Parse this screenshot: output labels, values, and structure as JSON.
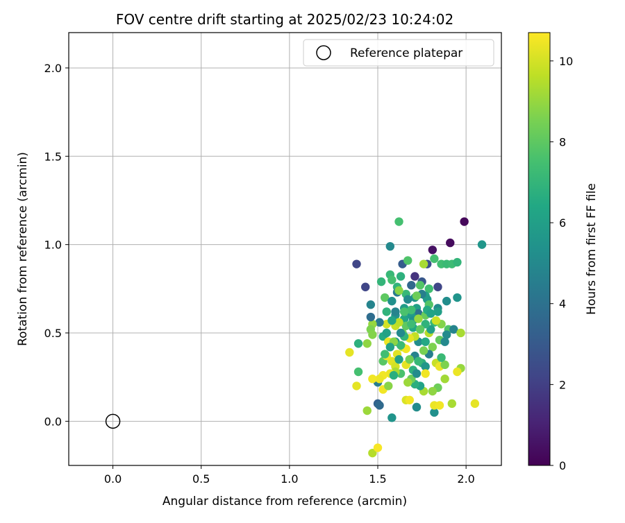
{
  "chart_data": {
    "type": "scatter",
    "title": "FOV centre drift starting at 2025/02/23 10:24:02",
    "xlabel": "Angular distance from reference (arcmin)",
    "ylabel": "Rotation from reference (arcmin)",
    "xlim": [
      -0.25,
      2.2
    ],
    "ylim": [
      -0.25,
      2.2
    ],
    "xticks": [
      "0.0",
      "0.5",
      "1.0",
      "1.5",
      "2.0"
    ],
    "yticks": [
      "0.0",
      "0.5",
      "1.0",
      "1.5",
      "2.0"
    ],
    "grid": true,
    "legend": {
      "placement": "upper-right",
      "label": "Reference platepar"
    },
    "reference": {
      "x": 0.0,
      "y": 0.0
    },
    "colorbar": {
      "label": "Hours from first FF file",
      "min": 0,
      "max": 10.7,
      "ticks": [
        "0",
        "2",
        "4",
        "6",
        "8",
        "10"
      ],
      "colormap": "viridis"
    },
    "points": [
      [
        1.99,
        1.13,
        0.2
      ],
      [
        1.91,
        1.01,
        0.3
      ],
      [
        1.81,
        0.97,
        0.5
      ],
      [
        1.62,
        1.13,
        7.5
      ],
      [
        2.09,
        1.0,
        5.6
      ],
      [
        1.38,
        0.89,
        2.2
      ],
      [
        1.57,
        0.99,
        5.0
      ],
      [
        1.43,
        0.76,
        2.2
      ],
      [
        1.64,
        0.89,
        3.1
      ],
      [
        1.71,
        0.82,
        1.6
      ],
      [
        1.69,
        0.77,
        3.6
      ],
      [
        1.75,
        0.79,
        2.9
      ],
      [
        1.84,
        0.76,
        2.2
      ],
      [
        1.82,
        0.92,
        7.5
      ],
      [
        1.86,
        0.89,
        7.4
      ],
      [
        1.89,
        0.89,
        7.2
      ],
      [
        1.92,
        0.89,
        7.3
      ],
      [
        1.95,
        0.9,
        7.0
      ],
      [
        1.78,
        0.89,
        2.6
      ],
      [
        1.76,
        0.89,
        9.3
      ],
      [
        1.67,
        0.91,
        7.7
      ],
      [
        1.63,
        0.82,
        6.8
      ],
      [
        1.57,
        0.83,
        7.1
      ],
      [
        1.52,
        0.79,
        7.0
      ],
      [
        1.58,
        0.8,
        7.5
      ],
      [
        1.61,
        0.76,
        6.9
      ],
      [
        1.66,
        0.72,
        7.1
      ],
      [
        1.74,
        0.77,
        7.8
      ],
      [
        1.79,
        0.75,
        7.4
      ],
      [
        1.77,
        0.71,
        6.2
      ],
      [
        1.71,
        0.7,
        5.6
      ],
      [
        1.61,
        0.73,
        4.4
      ],
      [
        1.62,
        0.74,
        8.8
      ],
      [
        1.54,
        0.7,
        8.0
      ],
      [
        1.58,
        0.68,
        5.3
      ],
      [
        1.46,
        0.66,
        4.8
      ],
      [
        1.65,
        0.64,
        5.9
      ],
      [
        1.72,
        0.64,
        6.0
      ],
      [
        1.78,
        0.69,
        5.8
      ],
      [
        1.73,
        0.61,
        4.0
      ],
      [
        1.79,
        0.66,
        7.8
      ],
      [
        1.84,
        0.64,
        5.1
      ],
      [
        1.84,
        0.62,
        6.0
      ],
      [
        1.89,
        0.68,
        5.2
      ],
      [
        1.95,
        0.7,
        5.5
      ],
      [
        1.55,
        0.62,
        6.9
      ],
      [
        1.6,
        0.6,
        5.5
      ],
      [
        1.65,
        0.58,
        6.3
      ],
      [
        1.69,
        0.6,
        5.8
      ],
      [
        1.77,
        0.6,
        8.2
      ],
      [
        1.82,
        0.56,
        7.1
      ],
      [
        1.86,
        0.55,
        8.7
      ],
      [
        1.9,
        0.52,
        7.7
      ],
      [
        1.93,
        0.52,
        4.8
      ],
      [
        1.97,
        0.5,
        9.3
      ],
      [
        1.89,
        0.49,
        5.1
      ],
      [
        1.85,
        0.46,
        8.1
      ],
      [
        1.88,
        0.45,
        5.0
      ],
      [
        1.81,
        0.42,
        8.6
      ],
      [
        1.79,
        0.38,
        4.6
      ],
      [
        1.76,
        0.4,
        8.5
      ],
      [
        1.73,
        0.45,
        5.2
      ],
      [
        1.71,
        0.48,
        9.7
      ],
      [
        1.68,
        0.47,
        10.3
      ],
      [
        1.64,
        0.5,
        8.3
      ],
      [
        1.6,
        0.54,
        9.8
      ],
      [
        1.55,
        0.55,
        10.0
      ],
      [
        1.51,
        0.56,
        4.4
      ],
      [
        1.47,
        0.55,
        9.0
      ],
      [
        1.46,
        0.59,
        3.8
      ],
      [
        1.46,
        0.52,
        8.6
      ],
      [
        1.47,
        0.49,
        8.7
      ],
      [
        1.53,
        0.48,
        6.5
      ],
      [
        1.56,
        0.45,
        10.4
      ],
      [
        1.6,
        0.45,
        5.6
      ],
      [
        1.64,
        0.42,
        9.7
      ],
      [
        1.66,
        0.41,
        10.5
      ],
      [
        1.61,
        0.38,
        10.2
      ],
      [
        1.58,
        0.34,
        10.2
      ],
      [
        1.53,
        0.34,
        7.9
      ],
      [
        1.55,
        0.37,
        10.4
      ],
      [
        1.6,
        0.31,
        10.0
      ],
      [
        1.66,
        0.32,
        10.3
      ],
      [
        1.71,
        0.37,
        4.7
      ],
      [
        1.75,
        0.33,
        6.8
      ],
      [
        1.77,
        0.31,
        5.6
      ],
      [
        1.83,
        0.33,
        9.8
      ],
      [
        1.85,
        0.31,
        10.4
      ],
      [
        1.88,
        0.32,
        8.6
      ],
      [
        1.97,
        0.3,
        9.0
      ],
      [
        1.95,
        0.28,
        10.4
      ],
      [
        1.88,
        0.24,
        9.2
      ],
      [
        1.84,
        0.19,
        8.3
      ],
      [
        1.81,
        0.17,
        8.9
      ],
      [
        1.76,
        0.17,
        9.3
      ],
      [
        1.74,
        0.2,
        6.2
      ],
      [
        1.71,
        0.21,
        6.7
      ],
      [
        1.69,
        0.24,
        8.3
      ],
      [
        1.67,
        0.22,
        9.1
      ],
      [
        1.63,
        0.27,
        7.6
      ],
      [
        1.6,
        0.28,
        9.3
      ],
      [
        1.57,
        0.27,
        10.4
      ],
      [
        1.53,
        0.26,
        10.5
      ],
      [
        1.5,
        0.22,
        4.5
      ],
      [
        1.51,
        0.24,
        10.4
      ],
      [
        1.47,
        0.24,
        10.5
      ],
      [
        1.53,
        0.18,
        10.5
      ],
      [
        1.56,
        0.2,
        8.8
      ],
      [
        1.39,
        0.28,
        7.5
      ],
      [
        1.38,
        0.2,
        10.3
      ],
      [
        1.34,
        0.39,
        10.3
      ],
      [
        1.39,
        0.44,
        6.8
      ],
      [
        1.44,
        0.44,
        8.9
      ],
      [
        1.5,
        0.1,
        3.4
      ],
      [
        1.51,
        0.09,
        3.7
      ],
      [
        1.44,
        0.06,
        9.1
      ],
      [
        1.58,
        0.02,
        5.5
      ],
      [
        1.66,
        0.12,
        10.1
      ],
      [
        1.68,
        0.12,
        10.5
      ],
      [
        1.72,
        0.08,
        7.9
      ],
      [
        1.72,
        0.08,
        5.1
      ],
      [
        1.82,
        0.05,
        5.3
      ],
      [
        1.82,
        0.09,
        10.4
      ],
      [
        1.85,
        0.09,
        10.5
      ],
      [
        1.92,
        0.1,
        9.3
      ],
      [
        2.05,
        0.1,
        10.3
      ],
      [
        1.47,
        -0.18,
        9.5
      ],
      [
        1.5,
        -0.15,
        10.6
      ],
      [
        1.7,
        0.29,
        6.8
      ],
      [
        1.72,
        0.27,
        5.1
      ],
      [
        1.77,
        0.27,
        10.5
      ],
      [
        1.79,
        0.5,
        9.5
      ],
      [
        1.8,
        0.52,
        6.0
      ],
      [
        1.74,
        0.52,
        10.5
      ],
      [
        1.7,
        0.53,
        6.4
      ],
      [
        1.66,
        0.54,
        8.0
      ],
      [
        1.62,
        0.56,
        9.6
      ],
      [
        1.68,
        0.35,
        8.4
      ],
      [
        1.73,
        0.34,
        7.1
      ],
      [
        1.63,
        0.43,
        7.2
      ],
      [
        1.59,
        0.45,
        8.8
      ],
      [
        1.65,
        0.48,
        7.0
      ],
      [
        1.69,
        0.63,
        7.4
      ],
      [
        1.6,
        0.62,
        4.8
      ],
      [
        1.67,
        0.69,
        5.1
      ],
      [
        1.7,
        0.57,
        5.3
      ],
      [
        1.63,
        0.5,
        5.0
      ],
      [
        1.57,
        0.42,
        6.1
      ],
      [
        1.54,
        0.38,
        7.4
      ],
      [
        1.62,
        0.35,
        6.0
      ],
      [
        1.86,
        0.36,
        7.2
      ],
      [
        1.77,
        0.45,
        6.4
      ],
      [
        1.73,
        0.58,
        9.0
      ],
      [
        1.78,
        0.63,
        6.5
      ],
      [
        1.58,
        0.57,
        6.3
      ],
      [
        1.55,
        0.5,
        6.1
      ],
      [
        1.59,
        0.26,
        6.7
      ],
      [
        1.65,
        0.62,
        7.6
      ],
      [
        1.75,
        0.72,
        4.6
      ],
      [
        1.69,
        0.55,
        7.3
      ],
      [
        1.72,
        0.71,
        8.3
      ],
      [
        1.8,
        0.61,
        6.2
      ],
      [
        1.83,
        0.57,
        9.9
      ],
      [
        1.77,
        0.55,
        6.9
      ],
      [
        1.74,
        0.52,
        8.0
      ]
    ]
  }
}
